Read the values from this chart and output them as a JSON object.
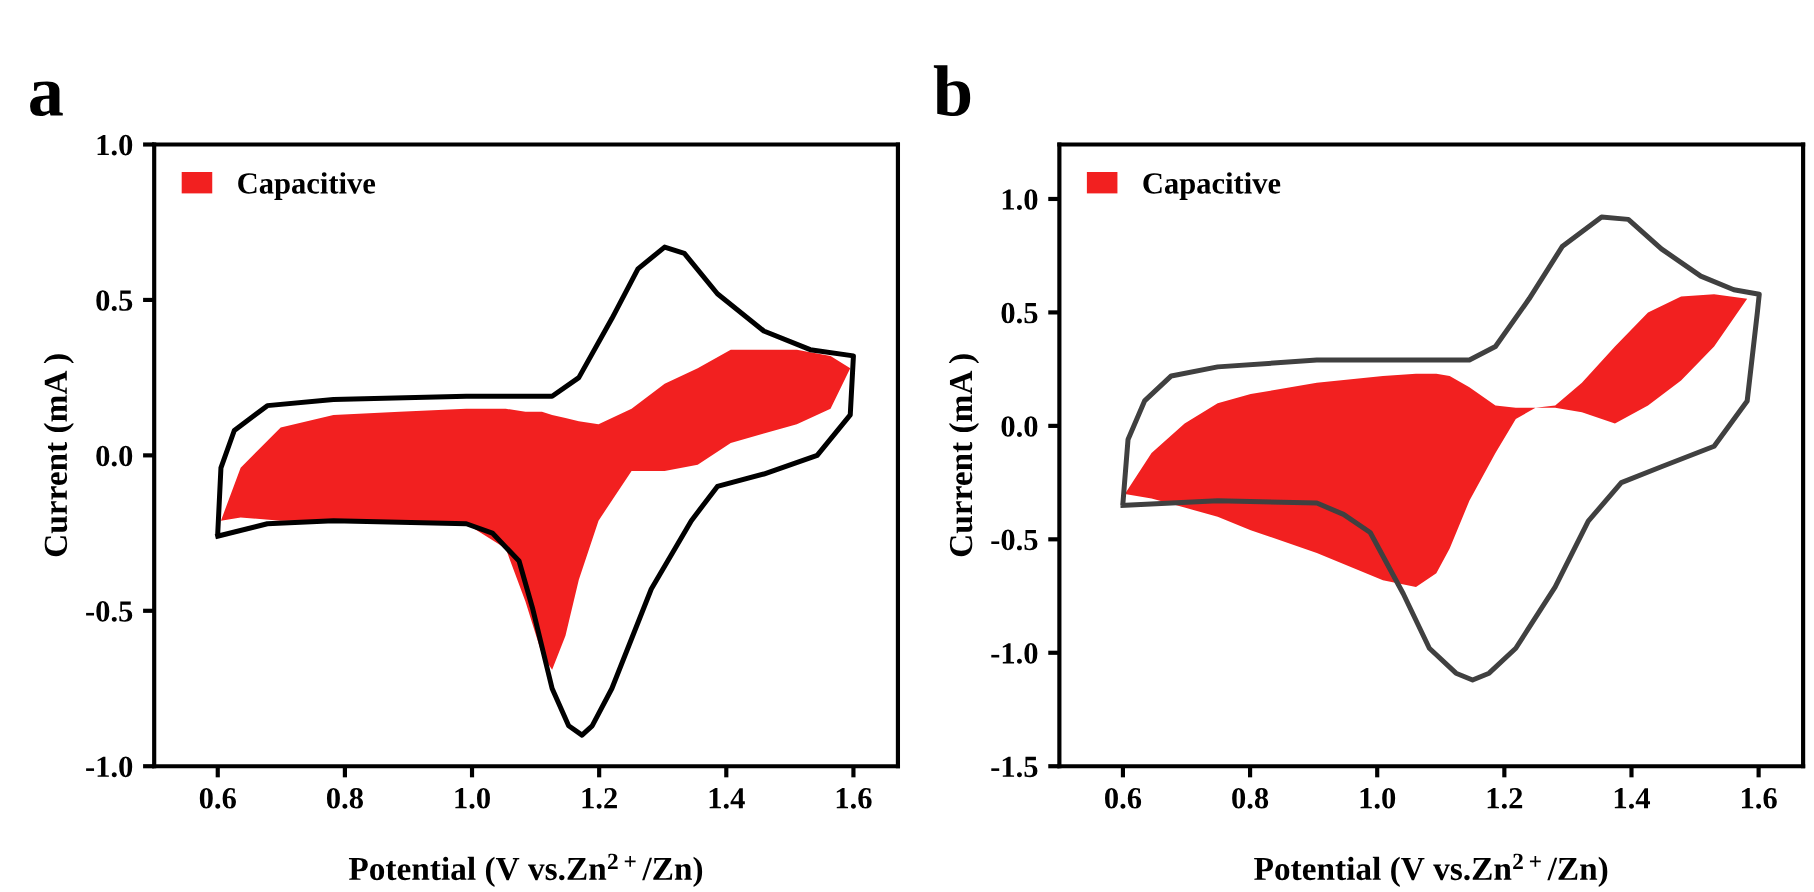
{
  "chart_data": [
    {
      "type": "line",
      "title": "a",
      "xlabel": "Potential (V vs.Zn$^{2+}$/Zn)",
      "ylabel": "Current (mA )",
      "xlim": [
        0.5,
        1.67
      ],
      "ylim": [
        -1.0,
        1.0
      ],
      "xticks": [
        0.6,
        0.8,
        {
          "value": 1.0,
          "label": "1.0"
        },
        1.2,
        1.4,
        1.6
      ],
      "yticks": [
        {
          "value": -1.0,
          "label": "-1.0"
        },
        {
          "value": -0.5,
          "label": "-0.5"
        },
        {
          "value": 0.0,
          "label": "0.0"
        },
        {
          "value": 0.5,
          "label": "0.5"
        },
        {
          "value": 1.0,
          "label": "1.0"
        }
      ],
      "legend": "top left",
      "grid": false,
      "marker": "none",
      "line_style": "solid",
      "series": [
        {
          "color": "#000000",
          "x": [
            0.6,
            0.605,
            0.626,
            0.678,
            0.782,
            0.991,
            1.126,
            1.168,
            1.22,
            1.261,
            1.303,
            1.334,
            1.386,
            1.459,
            1.532,
            1.6,
            1.595,
            1.543,
            1.459,
            1.386,
            1.345,
            1.282,
            1.22,
            1.189,
            1.173,
            1.152,
            1.126,
            1.095,
            1.074,
            1.032,
            0.991,
            0.782,
            0.678,
            0.6
          ],
          "values": [
            -0.25,
            -0.04,
            0.08,
            0.16,
            0.18,
            0.19,
            0.19,
            0.25,
            0.44,
            0.6,
            0.67,
            0.65,
            0.52,
            0.4,
            0.34,
            0.32,
            0.13,
            0.0,
            -0.06,
            -0.1,
            -0.21,
            -0.43,
            -0.75,
            -0.87,
            -0.9,
            -0.87,
            -0.75,
            -0.49,
            -0.34,
            -0.25,
            -0.22,
            -0.21,
            -0.22,
            -0.26
          ]
        },
        {
          "type": "area",
          "name": "Capacitive",
          "color": "#f22020",
          "x": [
            0.605,
            0.636,
            0.699,
            0.782,
            0.886,
            0.991,
            1.053,
            1.084,
            1.11,
            1.126,
            1.147,
            1.168,
            1.199,
            1.251,
            1.303,
            1.355,
            1.407,
            1.459,
            1.511,
            1.564,
            1.595,
            1.564,
            1.511,
            1.459,
            1.407,
            1.355,
            1.303,
            1.251,
            1.199,
            1.168,
            1.147,
            1.126,
            1.11,
            1.084,
            1.053,
            0.991,
            0.886,
            0.782,
            0.699,
            0.636
          ],
          "values": [
            -0.21,
            -0.04,
            0.09,
            0.13,
            0.14,
            0.15,
            0.15,
            0.14,
            0.14,
            0.13,
            0.12,
            0.11,
            0.1,
            0.15,
            0.23,
            0.28,
            0.34,
            0.34,
            0.34,
            0.32,
            0.28,
            0.15,
            0.1,
            0.07,
            0.04,
            -0.03,
            -0.05,
            -0.05,
            -0.21,
            -0.4,
            -0.58,
            -0.69,
            -0.64,
            -0.47,
            -0.3,
            -0.22,
            -0.21,
            -0.21,
            -0.21,
            -0.2
          ]
        }
      ]
    },
    {
      "type": "line",
      "title": "b",
      "xlabel": "Potential (V vs.Zn$^{2+}$/Zn)",
      "ylabel": "Current (mA )",
      "xlim": [
        0.5,
        1.67
      ],
      "ylim": [
        -1.5,
        1.24
      ],
      "xticks": [
        0.6,
        0.8,
        {
          "value": 1.0,
          "label": "1.0"
        },
        1.2,
        1.4,
        1.6
      ],
      "yticks": [
        {
          "value": -1.5,
          "label": "-1.5"
        },
        {
          "value": -1.0,
          "label": "-1.0"
        },
        {
          "value": -0.5,
          "label": "-0.5"
        },
        {
          "value": 0.0,
          "label": "0.0"
        },
        {
          "value": 0.5,
          "label": "0.5"
        },
        {
          "value": 1.0,
          "label": "1.0"
        }
      ],
      "legend": "top left",
      "grid": false,
      "marker": "none",
      "line_style": "solid",
      "series": [
        {
          "color": "#404040",
          "x": [
            0.6,
            0.608,
            0.634,
            0.676,
            0.749,
            0.905,
            1.145,
            1.186,
            1.239,
            1.291,
            1.353,
            1.395,
            1.447,
            1.509,
            1.561,
            1.601,
            1.598,
            1.582,
            1.53,
            1.447,
            1.384,
            1.332,
            1.28,
            1.218,
            1.176,
            1.15,
            1.124,
            1.082,
            1.041,
            0.989,
            0.947,
            0.905,
            0.749,
            0.6
          ],
          "values": [
            -0.34,
            -0.06,
            0.11,
            0.22,
            0.26,
            0.29,
            0.29,
            0.35,
            0.56,
            0.79,
            0.92,
            0.91,
            0.78,
            0.66,
            0.6,
            0.58,
            0.5,
            0.11,
            -0.09,
            -0.18,
            -0.25,
            -0.42,
            -0.71,
            -0.98,
            -1.09,
            -1.12,
            -1.09,
            -0.98,
            -0.74,
            -0.47,
            -0.39,
            -0.34,
            -0.33,
            -0.35
          ]
        },
        {
          "type": "area",
          "name": "Capacitive",
          "color": "#f22020",
          "x": [
            0.603,
            0.645,
            0.697,
            0.749,
            0.801,
            0.905,
            1.009,
            1.061,
            1.093,
            1.114,
            1.145,
            1.186,
            1.218,
            1.249,
            1.28,
            1.322,
            1.374,
            1.426,
            1.478,
            1.53,
            1.582,
            1.53,
            1.478,
            1.426,
            1.374,
            1.322,
            1.28,
            1.249,
            1.218,
            1.186,
            1.145,
            1.114,
            1.093,
            1.061,
            1.009,
            0.905,
            0.801,
            0.749,
            0.697,
            0.645
          ],
          "values": [
            -0.3,
            -0.12,
            0.01,
            0.1,
            0.14,
            0.19,
            0.22,
            0.23,
            0.23,
            0.22,
            0.17,
            0.09,
            0.08,
            0.08,
            0.09,
            0.19,
            0.35,
            0.5,
            0.57,
            0.58,
            0.56,
            0.35,
            0.2,
            0.09,
            0.01,
            0.06,
            0.08,
            0.08,
            0.03,
            -0.12,
            -0.33,
            -0.54,
            -0.65,
            -0.71,
            -0.68,
            -0.56,
            -0.46,
            -0.4,
            -0.36,
            -0.32
          ]
        }
      ]
    }
  ]
}
